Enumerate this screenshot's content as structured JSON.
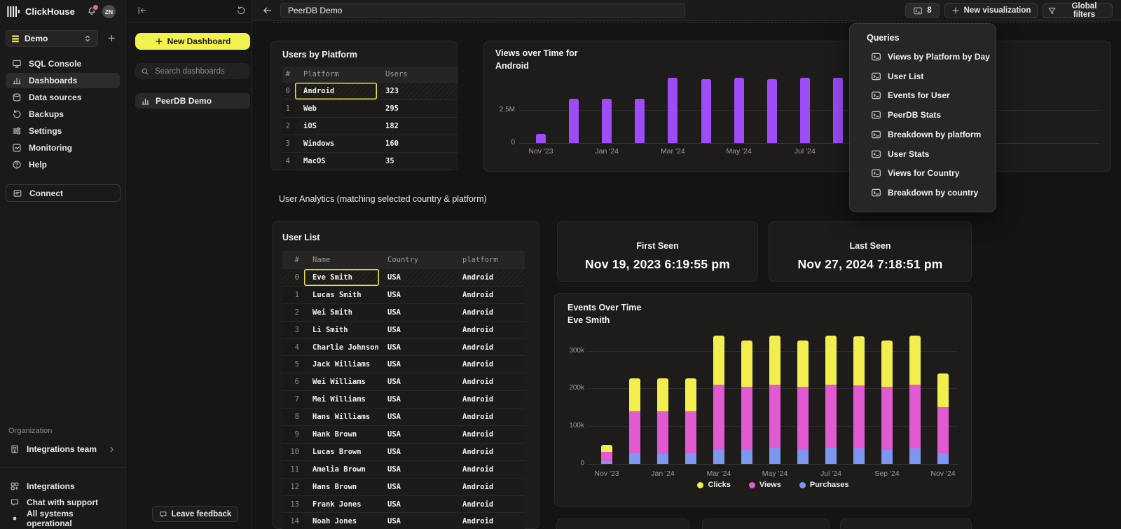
{
  "brand": {
    "name": "ClickHouse",
    "avatar": "ZN"
  },
  "sidebar": {
    "service": {
      "name": "Demo"
    },
    "items": [
      {
        "label": "SQL Console",
        "icon": "sql-console",
        "active": false
      },
      {
        "label": "Dashboards",
        "icon": "dashboards",
        "active": true
      },
      {
        "label": "Data sources",
        "icon": "data-sources",
        "active": false
      },
      {
        "label": "Backups",
        "icon": "backups",
        "active": false
      },
      {
        "label": "Settings",
        "icon": "settings",
        "active": false
      },
      {
        "label": "Monitoring",
        "icon": "monitoring",
        "active": false
      },
      {
        "label": "Help",
        "icon": "help",
        "active": false
      }
    ],
    "connect_label": "Connect",
    "organization_label": "Organization",
    "team_label": "Integrations team",
    "footer_items": [
      {
        "label": "Integrations",
        "icon": "integrations"
      },
      {
        "label": "Chat with support",
        "icon": "chat"
      },
      {
        "label": "All systems operational",
        "icon": "status-dot"
      }
    ]
  },
  "dashboards_panel": {
    "new_dashboard_label": "New Dashboard",
    "search_placeholder": "Search dashboards",
    "items": [
      {
        "label": "PeerDB Demo",
        "active": true
      }
    ],
    "feedback_label": "Leave feedback"
  },
  "topbar": {
    "title_value": "PeerDB Demo",
    "queries_count": "8",
    "new_visualization_label": "New visualization",
    "global_filters_label": "Global filters"
  },
  "queries_panel": {
    "title": "Queries",
    "items": [
      "Views by Platform by Day",
      "User List",
      "Events for User",
      "PeerDB Stats",
      "Breakdown by platform",
      "User Stats",
      "Views for Country",
      "Breakdown by country"
    ]
  },
  "section_heading": "User Analytics (matching selected country & platform)",
  "tables": {
    "users_by_platform": {
      "title": "Users by Platform",
      "columns": [
        "#",
        "Platform",
        "Users"
      ],
      "rows": [
        [
          "0",
          "Android",
          "323"
        ],
        [
          "1",
          "Web",
          "295"
        ],
        [
          "2",
          "iOS",
          "182"
        ],
        [
          "3",
          "Windows",
          "160"
        ],
        [
          "4",
          "MacOS",
          "35"
        ]
      ],
      "selected_cell": {
        "row": 0,
        "column": "Platform"
      }
    },
    "user_list": {
      "title": "User List",
      "columns": [
        "#",
        "Name",
        "Country",
        "platform"
      ],
      "rows": [
        [
          "0",
          "Eve Smith",
          "USA",
          "Android"
        ],
        [
          "1",
          "Lucas Smith",
          "USA",
          "Android"
        ],
        [
          "2",
          "Wei Smith",
          "USA",
          "Android"
        ],
        [
          "3",
          "Li Smith",
          "USA",
          "Android"
        ],
        [
          "4",
          "Charlie Johnson",
          "USA",
          "Android"
        ],
        [
          "5",
          "Jack Williams",
          "USA",
          "Android"
        ],
        [
          "6",
          "Wei Williams",
          "USA",
          "Android"
        ],
        [
          "7",
          "Mei Williams",
          "USA",
          "Android"
        ],
        [
          "8",
          "Hans Williams",
          "USA",
          "Android"
        ],
        [
          "9",
          "Hank Brown",
          "USA",
          "Android"
        ],
        [
          "10",
          "Lucas Brown",
          "USA",
          "Android"
        ],
        [
          "11",
          "Amelia Brown",
          "USA",
          "Android"
        ],
        [
          "12",
          "Hans Brown",
          "USA",
          "Android"
        ],
        [
          "13",
          "Frank Jones",
          "USA",
          "Android"
        ],
        [
          "14",
          "Noah Jones",
          "USA",
          "Android"
        ]
      ],
      "selected_cell": {
        "row": 0,
        "column": "Name"
      }
    }
  },
  "stat_cards": [
    {
      "label": "First Seen",
      "value": "Nov 19, 2023 6:19:55 pm"
    },
    {
      "label": "Last Seen",
      "value": "Nov 27, 2024 7:18:51 pm"
    }
  ],
  "chart_data": [
    {
      "type": "bar",
      "title": "Views over Time for",
      "subtitle": "Android",
      "categories": [
        "Nov '23",
        "Dec '23",
        "Jan '24",
        "Feb '24",
        "Mar '24",
        "Apr '24",
        "May '24",
        "Jun '24",
        "Jul '24",
        "Aug '24"
      ],
      "values_millions": [
        0.7,
        3.3,
        3.3,
        3.3,
        4.9,
        4.8,
        4.9,
        4.8,
        4.9,
        4.9
      ],
      "x_tick_indices": [
        0,
        2,
        4,
        6,
        8
      ],
      "y_ticks": [
        {
          "label": "0",
          "value": 0
        },
        {
          "label": "2.5M",
          "value": 2.5
        }
      ],
      "ylim_millions": [
        0,
        5.2
      ],
      "bar_color": "#9d4cf7",
      "grid": true,
      "legend": false
    },
    {
      "type": "stacked-bar",
      "title": "Events Over Time",
      "subtitle": "Eve Smith",
      "categories": [
        "Nov '23",
        "Dec '23",
        "Jan '24",
        "Feb '24",
        "Mar '24",
        "Apr '24",
        "May '24",
        "Jun '24",
        "Jul '24",
        "Aug '24",
        "Sep '24",
        "Oct '24",
        "Nov '24"
      ],
      "series": [
        {
          "name": "Clicks",
          "color": "#f2ee4e",
          "values_thousands": [
            18,
            86,
            86,
            86,
            130,
            124,
            130,
            124,
            130,
            130,
            124,
            130,
            90
          ]
        },
        {
          "name": "Views",
          "color": "#e25ad2",
          "values_thousands": [
            24,
            112,
            114,
            112,
            172,
            166,
            168,
            166,
            168,
            168,
            166,
            170,
            122
          ]
        },
        {
          "name": "Purchases",
          "color": "#7d97f0",
          "values_thousands": [
            8,
            28,
            26,
            28,
            38,
            38,
            42,
            38,
            42,
            40,
            38,
            40,
            28
          ]
        }
      ],
      "stack_order_bottom_to_top": [
        "Purchases",
        "Views",
        "Clicks"
      ],
      "x_tick_indices": [
        0,
        2,
        4,
        6,
        8,
        10,
        12
      ],
      "y_ticks": [
        {
          "label": "0",
          "value": 0
        },
        {
          "label": "100k",
          "value": 100
        },
        {
          "label": "200k",
          "value": 200
        },
        {
          "label": "300k",
          "value": 300
        }
      ],
      "ylim_thousands": [
        0,
        350
      ],
      "grid": true,
      "legend_position": "bottom"
    }
  ],
  "colors": {
    "accent_yellow": "#f2f24f",
    "bar_purple": "#9d4cf7",
    "clicks_yellow": "#f2ee4e",
    "views_magenta": "#e25ad2",
    "purchases_blue": "#7d97f0",
    "selection_yellow": "#e6df4d",
    "notification_red": "#e4736c"
  }
}
